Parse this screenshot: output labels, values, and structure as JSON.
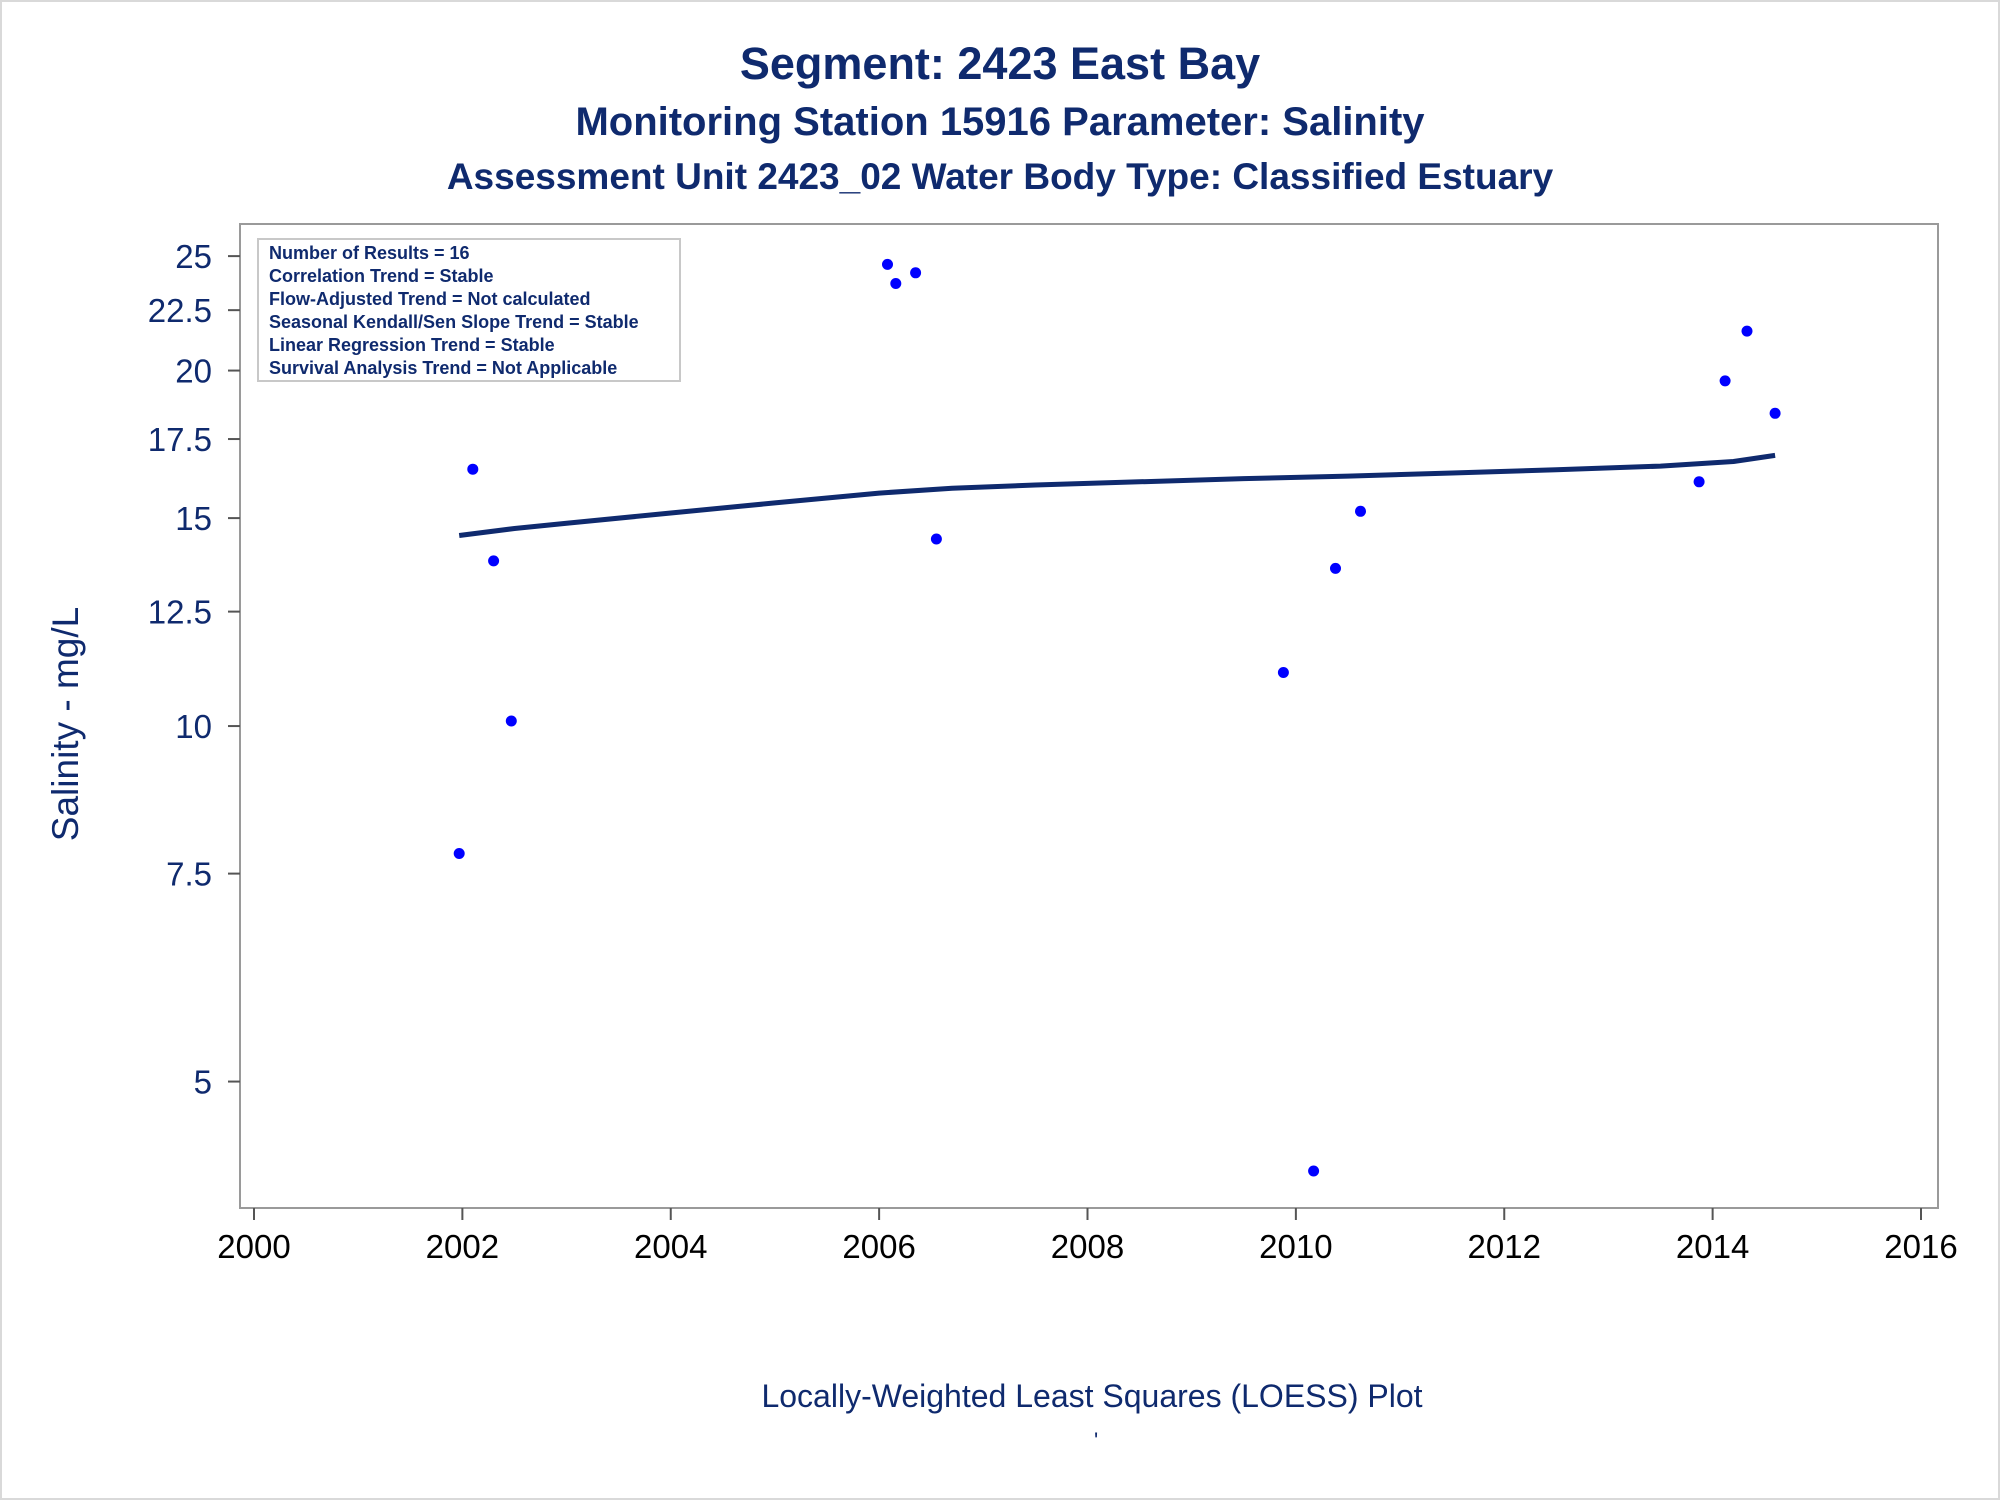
{
  "chart_data": {
    "type": "scatter",
    "title": "Segment: 2423  East Bay",
    "subtitles": [
      "Monitoring Station 15916 Parameter: Salinity",
      "Assessment Unit 2423_02   Water Body Type: Classified Estuary"
    ],
    "xlabel": "",
    "ylabel": "Salinity - mg/L",
    "footnote": "Locally-Weighted Least Squares (LOESS) Plot",
    "footnote_mark": "'",
    "x_is_year": true,
    "xlim": [
      2000,
      2016
    ],
    "ylim": [
      4.0,
      26.0
    ],
    "y_scale": "log",
    "x_ticks": [
      2000,
      2002,
      2004,
      2006,
      2008,
      2010,
      2012,
      2014,
      2016
    ],
    "y_ticks": [
      5,
      7.5,
      10,
      12.5,
      15,
      17.5,
      20,
      22.5,
      25
    ],
    "grid": false,
    "legend": {
      "placement": "top-left",
      "entries": [
        "Number of Results = 16",
        "Correlation Trend = Stable",
        "Flow-Adjusted Trend = Not calculated",
        "Seasonal Kendall/Sen Slope Trend = Stable",
        "Linear Regression Trend = Stable",
        "Survival Analysis Trend = Not Applicable"
      ]
    },
    "series": [
      {
        "type": "scatter",
        "color": "#0000ff",
        "points": [
          [
            2001.97,
            7.8
          ],
          [
            2002.1,
            16.5
          ],
          [
            2002.3,
            13.8
          ],
          [
            2002.47,
            10.1
          ],
          [
            2006.08,
            24.6
          ],
          [
            2006.16,
            23.7
          ],
          [
            2006.35,
            24.2
          ],
          [
            2006.55,
            14.4
          ],
          [
            2009.88,
            11.1
          ],
          [
            2010.17,
            4.2
          ],
          [
            2010.38,
            13.6
          ],
          [
            2010.62,
            15.2
          ],
          [
            2013.87,
            16.1
          ],
          [
            2014.12,
            19.6
          ],
          [
            2014.33,
            21.6
          ],
          [
            2014.6,
            18.4
          ]
        ]
      },
      {
        "type": "line",
        "color": "#0f2a6e",
        "points": [
          [
            2001.97,
            14.5
          ],
          [
            2002.5,
            14.7
          ],
          [
            2003.0,
            14.85
          ],
          [
            2004.0,
            15.15
          ],
          [
            2005.0,
            15.45
          ],
          [
            2006.0,
            15.75
          ],
          [
            2006.7,
            15.9
          ],
          [
            2007.5,
            16.0
          ],
          [
            2008.5,
            16.1
          ],
          [
            2009.5,
            16.2
          ],
          [
            2010.5,
            16.28
          ],
          [
            2011.5,
            16.38
          ],
          [
            2012.5,
            16.48
          ],
          [
            2013.5,
            16.6
          ],
          [
            2014.2,
            16.75
          ],
          [
            2014.6,
            16.95
          ]
        ]
      }
    ]
  }
}
